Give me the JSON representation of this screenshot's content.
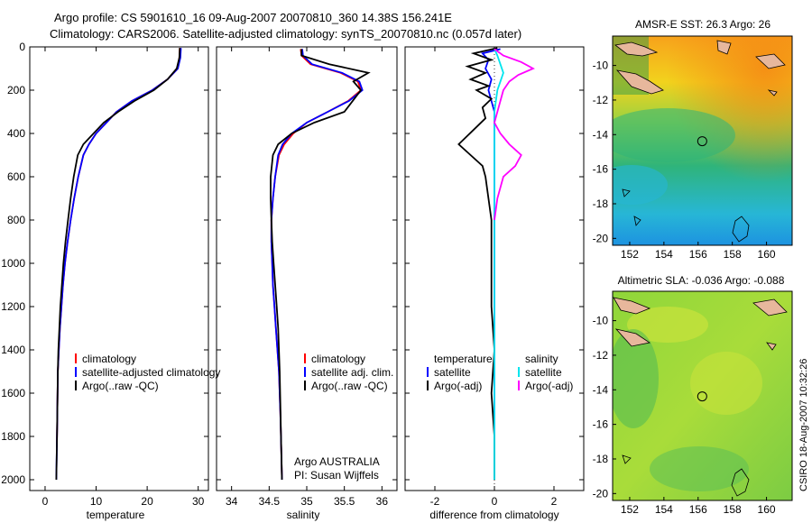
{
  "header": {
    "line1": "Argo profile: CS 5901610_16 09-Aug-2007 20070810_360 14.38S 156.241E",
    "line2": "Climatology: CARS2006. Satellite-adjusted climatology: synTS_20070810.nc (0.057d later)"
  },
  "colors": {
    "climatology": "#ff0000",
    "satellite": "#0000ff",
    "argo": "#000000",
    "salinity_satellite": "#00e5ee",
    "salinity_argo": "#ff00ff"
  },
  "chart_data": [
    {
      "type": "line",
      "id": "temperature",
      "xlabel": "temperature",
      "xlim": [
        -3,
        32
      ],
      "ylim": [
        0,
        2050
      ],
      "y_reversed": true,
      "xticks": [
        0,
        10,
        20,
        30
      ],
      "yticks": [
        0,
        200,
        400,
        600,
        800,
        1000,
        1200,
        1400,
        1600,
        1800,
        2000
      ],
      "legend": [
        "climatology",
        "satellite-adjusted climatology",
        "Argo(..raw -QC)"
      ],
      "legend_position": "lower-right",
      "series": [
        {
          "name": "climatology",
          "color": "#ff0000",
          "x": [
            26.4,
            26.3,
            26.0,
            24.0,
            21.0,
            17.0,
            14.0,
            12.0,
            10.0,
            8.6,
            7.5,
            6.5,
            5.7,
            5.0,
            4.4,
            3.9,
            3.5,
            3.2,
            2.9,
            2.7,
            2.5,
            2.4,
            2.3
          ],
          "y": [
            5,
            50,
            100,
            150,
            200,
            250,
            300,
            350,
            400,
            450,
            500,
            600,
            700,
            800,
            900,
            1000,
            1100,
            1200,
            1300,
            1400,
            1500,
            1700,
            1850
          ]
        },
        {
          "name": "satellite-adjusted climatology",
          "color": "#0000ff",
          "x": [
            26.6,
            26.5,
            26.0,
            24.0,
            21.0,
            17.0,
            14.0,
            12.0,
            10.0,
            8.6,
            7.5,
            6.5,
            5.7,
            5.0,
            4.4,
            3.9,
            3.5,
            3.2,
            2.9,
            2.7,
            2.5,
            2.4,
            2.3,
            2.2
          ],
          "y": [
            5,
            50,
            100,
            150,
            200,
            250,
            300,
            350,
            400,
            450,
            500,
            600,
            700,
            800,
            900,
            1000,
            1100,
            1200,
            1300,
            1400,
            1500,
            1700,
            1850,
            2000
          ]
        },
        {
          "name": "Argo(..raw -QC)",
          "color": "#000000",
          "x": [
            26.4,
            26.3,
            25.8,
            24.0,
            21.3,
            17.5,
            14.3,
            11.5,
            9.5,
            7.5,
            6.4,
            5.6,
            5.0,
            4.5,
            4.0,
            3.6,
            3.3,
            3.0,
            2.8,
            2.6,
            2.5,
            2.4,
            2.3,
            2.2
          ],
          "y": [
            5,
            50,
            100,
            150,
            200,
            250,
            300,
            350,
            400,
            450,
            500,
            600,
            700,
            800,
            900,
            1000,
            1100,
            1200,
            1300,
            1400,
            1500,
            1700,
            1850,
            2000
          ]
        }
      ]
    },
    {
      "type": "line",
      "id": "salinity",
      "xlabel": "salinity",
      "xlim": [
        33.8,
        36.2
      ],
      "ylim": [
        0,
        2050
      ],
      "y_reversed": true,
      "xticks": [
        34,
        34.5,
        35,
        35.5,
        36
      ],
      "legend": [
        "climatology",
        "satellite adj. clim.",
        "Argo(..raw -QC)"
      ],
      "legend_position": "lower-right",
      "annotation": [
        "Argo AUSTRALIA",
        "PI: Susan Wijffels"
      ],
      "series": [
        {
          "name": "climatology",
          "color": "#ff0000",
          "x": [
            34.92,
            34.93,
            35.05,
            35.45,
            35.68,
            35.72,
            35.55,
            35.28,
            35.0,
            34.82,
            34.7,
            34.63,
            34.58,
            34.55,
            34.53,
            34.53,
            34.54,
            34.55,
            34.57,
            34.59,
            34.61,
            34.63,
            34.65,
            34.66,
            34.67
          ],
          "y": [
            10,
            40,
            80,
            120,
            160,
            200,
            250,
            300,
            350,
            400,
            450,
            500,
            600,
            700,
            800,
            900,
            1000,
            1100,
            1200,
            1300,
            1400,
            1500,
            1700,
            1850,
            2000
          ]
        },
        {
          "name": "satellite adj. clim.",
          "color": "#0000ff",
          "x": [
            34.94,
            34.95,
            35.07,
            35.47,
            35.7,
            35.74,
            35.56,
            35.28,
            35.0,
            34.8,
            34.68,
            34.62,
            34.58,
            34.55,
            34.53,
            34.53,
            34.54,
            34.55,
            34.57,
            34.59,
            34.61,
            34.63,
            34.65,
            34.66,
            34.67
          ],
          "y": [
            10,
            40,
            80,
            120,
            160,
            200,
            250,
            300,
            350,
            400,
            450,
            500,
            600,
            700,
            800,
            900,
            1000,
            1100,
            1200,
            1300,
            1400,
            1500,
            1700,
            1850,
            2000
          ]
        },
        {
          "name": "Argo(..raw -QC)",
          "color": "#000000",
          "x": [
            34.93,
            34.93,
            35.3,
            35.82,
            35.62,
            35.72,
            35.5,
            35.1,
            34.8,
            34.62,
            34.55,
            34.52,
            34.52,
            34.53,
            34.54,
            34.56,
            34.58,
            34.6,
            34.62,
            34.64,
            34.66,
            34.67
          ],
          "y": [
            10,
            40,
            80,
            120,
            160,
            200,
            300,
            350,
            400,
            450,
            500,
            600,
            700,
            800,
            900,
            1000,
            1100,
            1200,
            1300,
            1500,
            1850,
            2000
          ]
        }
      ]
    },
    {
      "type": "line",
      "id": "difference",
      "xlabel": "difference from climatology",
      "xlim": [
        -3.0,
        3.0
      ],
      "ylim": [
        0,
        2050
      ],
      "y_reversed": true,
      "xticks": [
        -2,
        0,
        2
      ],
      "legend_temperature": [
        "temperature",
        "satellite",
        "Argo(-adj)"
      ],
      "legend_salinity": [
        "salinity",
        "satellite",
        "Argo(-adj)"
      ],
      "series": [
        {
          "name": "temperature satellite",
          "color": "#0000ff",
          "x": [
            0.2,
            -0.4,
            -0.2,
            -0.3,
            -0.1,
            -0.2,
            0.0,
            0.0,
            0.0,
            0.0,
            0.0,
            0.0,
            0.0,
            0.0
          ],
          "y": [
            10,
            30,
            60,
            100,
            150,
            200,
            300,
            400,
            600,
            800,
            1000,
            1400,
            1800,
            2000
          ]
        },
        {
          "name": "temperature Argo(-adj)",
          "color": "#000000",
          "x": [
            0.1,
            -0.7,
            -0.1,
            -0.9,
            -0.3,
            -0.8,
            -0.2,
            -0.6,
            -0.1,
            -0.4,
            -0.3,
            -1.2,
            -0.8,
            -0.4,
            -0.3,
            -0.2,
            -0.1,
            -0.1,
            -0.1,
            -0.1,
            0.0,
            -0.1,
            0.0,
            0.0
          ],
          "y": [
            5,
            30,
            60,
            90,
            120,
            150,
            180,
            200,
            240,
            280,
            330,
            450,
            500,
            550,
            600,
            700,
            800,
            900,
            1000,
            1200,
            1400,
            1600,
            1800,
            2000
          ]
        },
        {
          "name": "salinity satellite",
          "color": "#00e5ee",
          "x": [
            0.0,
            0.1,
            0.2,
            0.3,
            0.2,
            0.1,
            0.0,
            0.0,
            0.0,
            0.0,
            0.0,
            0.0
          ],
          "y": [
            10,
            40,
            80,
            120,
            160,
            200,
            300,
            500,
            800,
            1200,
            1600,
            2000
          ]
        },
        {
          "name": "salinity Argo(-adj)",
          "color": "#ff00ff",
          "x": [
            0.0,
            0.3,
            0.9,
            1.3,
            0.8,
            0.5,
            0.3,
            0.2,
            0.1,
            0.0,
            0.2,
            0.5,
            0.9,
            0.7,
            0.3,
            0.1,
            0.0
          ],
          "y": [
            10,
            40,
            70,
            100,
            130,
            160,
            200,
            250,
            300,
            350,
            400,
            450,
            500,
            550,
            600,
            700,
            800
          ]
        }
      ]
    },
    {
      "type": "heatmap",
      "id": "sst-map",
      "title": "AMSR-E SST: 26.3  Argo: 26",
      "xlim": [
        151,
        161.5
      ],
      "ylim": [
        -20.4,
        -8.3
      ],
      "xticks": [
        152,
        154,
        156,
        158,
        160
      ],
      "yticks": [
        -10,
        -12,
        -14,
        -16,
        -18,
        -20
      ],
      "marker": {
        "lon": 156.241,
        "lat": -14.38
      }
    },
    {
      "type": "heatmap",
      "id": "sla-map",
      "title": "Altimetric SLA: -0.036  Argo: -0.088",
      "xlim": [
        151,
        161.5
      ],
      "ylim": [
        -20.4,
        -8.3
      ],
      "xticks": [
        152,
        154,
        156,
        158,
        160
      ],
      "yticks": [
        -10,
        -12,
        -14,
        -16,
        -18,
        -20
      ],
      "marker": {
        "lon": 156.241,
        "lat": -14.38
      }
    }
  ],
  "footer": {
    "stamp": "CSIRO 18-Aug-2007 10:32:26"
  }
}
